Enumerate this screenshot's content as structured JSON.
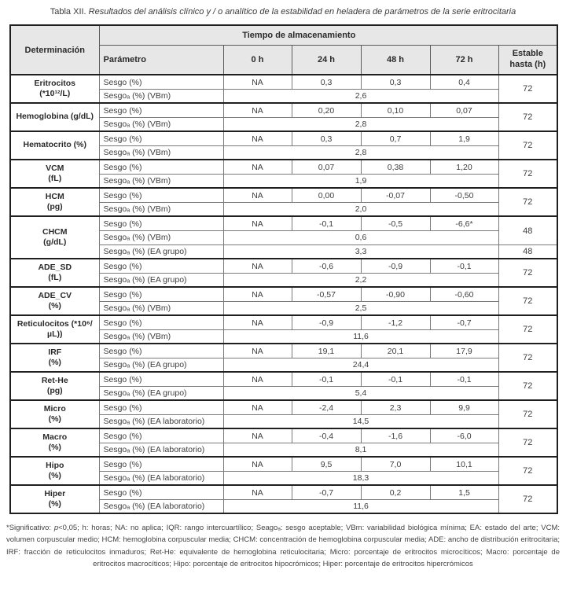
{
  "colors": {
    "header_bg": "#e7e7e7",
    "border_dark": "#1f1f1f",
    "border_light": "#7a7a7a",
    "text": "#3d3d3d"
  },
  "title": {
    "prefix": "Tabla XII.",
    "text": " Resultados del análisis clínico y / o analítico de la estabilidad en heladera de parámetros de la serie eritrocitaria"
  },
  "table": {
    "header": {
      "determinacion": "Determinación",
      "tiempo": "Tiempo de almacenamiento",
      "parametro": "Parámetro",
      "times": [
        "0 h",
        "24 h",
        "48 h",
        "72 h"
      ],
      "estable": "Estable hasta (h)"
    },
    "groups": [
      {
        "name": [
          "Eritrocitos",
          "(*10¹²/L)"
        ],
        "rows": [
          {
            "param": "Sesgo (%)",
            "values": [
              "NA",
              "0,3",
              "0,3",
              "0,4"
            ]
          },
          {
            "param": "Sesgoₐ (%) (VBm)",
            "span_value": "2,6"
          }
        ],
        "estable": [
          {
            "value": "72",
            "span": 2
          }
        ]
      },
      {
        "name": [
          "Hemoglobina (g/dL)"
        ],
        "rows": [
          {
            "param": "Sesgo (%)",
            "values": [
              "NA",
              "0,20",
              "0,10",
              "0,07"
            ]
          },
          {
            "param": "Sesgoₐ (%) (VBm)",
            "span_value": "2,8"
          }
        ],
        "estable": [
          {
            "value": "72",
            "span": 2
          }
        ]
      },
      {
        "name": [
          "Hematocrito (%)"
        ],
        "rows": [
          {
            "param": "Sesgo (%)",
            "values": [
              "NA",
              "0,3",
              "0,7",
              "1,9"
            ]
          },
          {
            "param": "Sesgoₐ (%) (VBm)",
            "span_value": "2,8"
          }
        ],
        "estable": [
          {
            "value": "72",
            "span": 2
          }
        ]
      },
      {
        "name": [
          "VCM",
          "(fL)"
        ],
        "rows": [
          {
            "param": "Sesgo (%)",
            "values": [
              "NA",
              "0,07",
              "0,38",
              "1,20"
            ]
          },
          {
            "param": "Sesgoₐ (%) (VBm)",
            "span_value": "1,9"
          }
        ],
        "estable": [
          {
            "value": "72",
            "span": 2
          }
        ]
      },
      {
        "name": [
          "HCM",
          "(pg)"
        ],
        "rows": [
          {
            "param": "Sesgo (%)",
            "values": [
              "NA",
              "0,00",
              "-0,07",
              "-0,50"
            ]
          },
          {
            "param": "Sesgoₐ (%) (VBm)",
            "span_value": "2,0"
          }
        ],
        "estable": [
          {
            "value": "72",
            "span": 2
          }
        ]
      },
      {
        "name": [
          "CHCM",
          "(g/dL)"
        ],
        "rows": [
          {
            "param": "Sesgo (%)",
            "values": [
              "NA",
              "-0,1",
              "-0,5",
              "-6,6*"
            ]
          },
          {
            "param": "Sesgoₐ (%) (VBm)",
            "span_value": "0,6"
          },
          {
            "param": "Sesgoₐ (%) (EA grupo)",
            "span_value": "3,3"
          }
        ],
        "estable": [
          {
            "value": "48",
            "span": 2
          },
          {
            "value": "48",
            "span": 1
          }
        ]
      },
      {
        "name": [
          "ADE_SD",
          "(fL)"
        ],
        "rows": [
          {
            "param": "Sesgo (%)",
            "values": [
              "NA",
              "-0,6",
              "-0,9",
              "-0,1"
            ]
          },
          {
            "param": "Sesgoₐ (%) (EA grupo)",
            "span_value": "2,2"
          }
        ],
        "estable": [
          {
            "value": "72",
            "span": 2
          }
        ]
      },
      {
        "name": [
          "ADE_CV",
          "(%)"
        ],
        "rows": [
          {
            "param": "Sesgo (%)",
            "values": [
              "NA",
              "-0,57",
              "-0,90",
              "-0,60"
            ]
          },
          {
            "param": "Sesgoₐ (%) (VBm)",
            "span_value": "2,5"
          }
        ],
        "estable": [
          {
            "value": "72",
            "span": 2
          }
        ]
      },
      {
        "name": [
          "Reticulocitos (*10⁶/",
          "µL))"
        ],
        "rows": [
          {
            "param": "Sesgo (%)",
            "values": [
              "NA",
              "-0,9",
              "-1,2",
              "-0,7"
            ]
          },
          {
            "param": "Sesgoₐ (%) (VBm)",
            "span_value": "11,6"
          }
        ],
        "estable": [
          {
            "value": "72",
            "span": 2
          }
        ]
      },
      {
        "name": [
          "IRF",
          "(%)"
        ],
        "rows": [
          {
            "param": "Sesgo (%)",
            "values": [
              "NA",
              "19,1",
              "20,1",
              "17,9"
            ]
          },
          {
            "param": "Sesgoₐ (%) (EA grupo)",
            "span_value": "24,4"
          }
        ],
        "estable": [
          {
            "value": "72",
            "span": 2
          }
        ]
      },
      {
        "name": [
          "Ret-He",
          "(pg)"
        ],
        "rows": [
          {
            "param": "Sesgo (%)",
            "values": [
              "NA",
              "-0,1",
              "-0,1",
              "-0,1"
            ]
          },
          {
            "param": "Sesgoₐ (%) (EA grupo)",
            "span_value": "5,4"
          }
        ],
        "estable": [
          {
            "value": "72",
            "span": 2
          }
        ]
      },
      {
        "name": [
          "Micro",
          "(%)"
        ],
        "rows": [
          {
            "param": "Sesgo (%)",
            "values": [
              "NA",
              "-2,4",
              "2,3",
              "9,9"
            ]
          },
          {
            "param": "Sesgoₐ (%) (EA laboratorio)",
            "span_value": "14,5"
          }
        ],
        "estable": [
          {
            "value": "72",
            "span": 2
          }
        ]
      },
      {
        "name": [
          "Macro",
          "(%)"
        ],
        "rows": [
          {
            "param": "Sesgo (%)",
            "values": [
              "NA",
              "-0,4",
              "-1,6",
              "-6,0"
            ]
          },
          {
            "param": "Sesgoₐ (%) (EA laboratorio)",
            "span_value": "8,1"
          }
        ],
        "estable": [
          {
            "value": "72",
            "span": 2
          }
        ]
      },
      {
        "name": [
          "Hipo",
          "(%)"
        ],
        "rows": [
          {
            "param": "Sesgo (%)",
            "values": [
              "NA",
              "9,5",
              "7,0",
              "10,1"
            ]
          },
          {
            "param": "Sesgoₐ (%) (EA laboratorio)",
            "span_value": "18,3"
          }
        ],
        "estable": [
          {
            "value": "72",
            "span": 2
          }
        ]
      },
      {
        "name": [
          "Hiper",
          "(%)"
        ],
        "rows": [
          {
            "param": "Sesgo (%)",
            "values": [
              "NA",
              "-0,7",
              "0,2",
              "1,5"
            ]
          },
          {
            "param": "Sesgoₐ (%) (EA laboratorio)",
            "span_value": "11,6"
          }
        ],
        "estable": [
          {
            "value": "72",
            "span": 2
          }
        ]
      }
    ]
  },
  "footnote": {
    "pre": "*Significativo: ",
    "italic": "p",
    "rest": "<0,05; h: horas; NA: no aplica; IQR: rango intercuartílico; Seagoₐ: sesgo aceptable; VBm: variabilidad biológica mínima; EA: estado del arte; VCM: volumen corpuscular medio; HCM: hemoglobina corpuscular media; CHCM: concentración de hemoglobina corpuscular media; ADE: ancho de distribución eritrocitaria; IRF: fracción de reticulocitos inmaduros; Ret-He: equivalente de hemoglobina reticulocitaria; Micro: porcentaje de eritrocitos microcíticos; Macro: porcentaje de eritrocitos macrocíticos; Hipo: porcentaje de eritrocitos hipocrómicos; Hiper: porcentaje de eritrocitos hipercrómicos"
  }
}
